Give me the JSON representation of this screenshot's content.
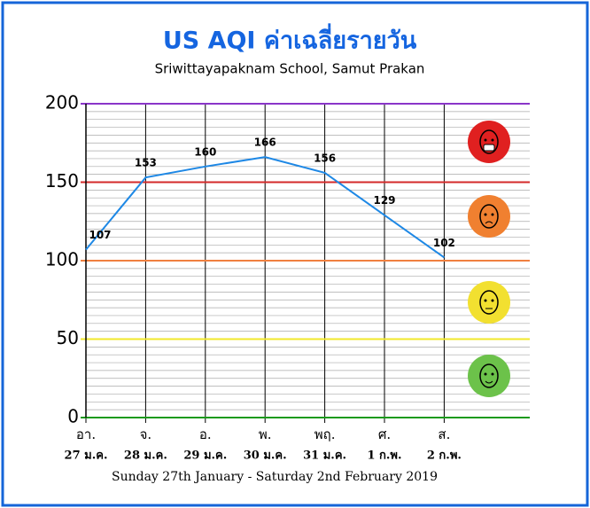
{
  "chart_data": {
    "type": "line",
    "title": "US AQI ค่าเฉลี่ยรายวัน",
    "subtitle": "Sriwittayapaknam School, Samut Prakan",
    "footer": "Sunday 27th January - Saturday 2nd February 2019",
    "categories": [
      "อา.",
      "จ.",
      "อ.",
      "พ.",
      "พฤ.",
      "ศ.",
      "ส."
    ],
    "dates": [
      "27 ม.ค.",
      "28 ม.ค.",
      "29 ม.ค.",
      "30 ม.ค.",
      "31 ม.ค.",
      "1 ก.พ.",
      "2 ก.พ."
    ],
    "values": [
      107,
      153,
      160,
      166,
      156,
      129,
      102
    ],
    "color": "#1e88e5",
    "ylim": [
      0,
      200
    ],
    "yticks": [
      0,
      50,
      100,
      150,
      200
    ],
    "threshold_colors": [
      "#1a9a1a",
      "#f2e82a",
      "#f08040",
      "#d42a2a",
      "#8a35c9"
    ],
    "minor_grid_step": 5,
    "grid": true
  }
}
